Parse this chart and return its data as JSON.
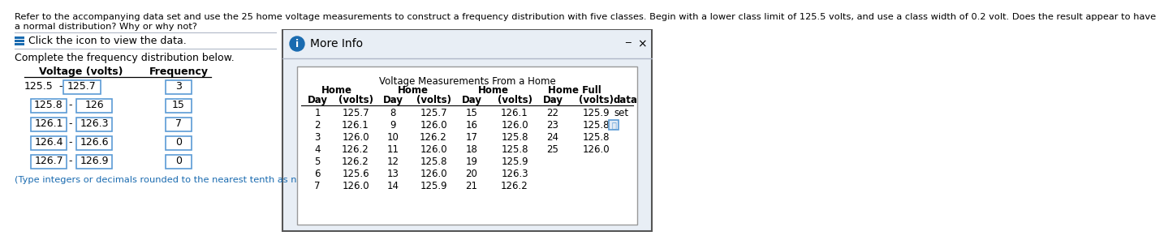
{
  "header_text_line1": "Refer to the accompanying data set and use the 25 home voltage measurements to construct a frequency distribution with five classes. Begin with a lower class limit of 125.5 volts, and use a class width of 0.2 volt. Does the result appear to have",
  "header_text_line2": "a normal distribution? Why or why not?",
  "click_text": "Click the icon to view the data.",
  "complete_text": "Complete the frequency distribution below.",
  "table_header_volt": "Voltage (volts)",
  "table_header_freq": "Frequency",
  "freq_rows": [
    [
      "125.5",
      "125.7",
      "3"
    ],
    [
      "125.8",
      "126",
      "15"
    ],
    [
      "126.1",
      "126.3",
      "7"
    ],
    [
      "126.4",
      "126.6",
      "0"
    ],
    [
      "126.7",
      "126.9",
      "0"
    ]
  ],
  "note_text": "(Type integers or decimals rounded to the nearest tenth as needed.",
  "popup_title": "More Info",
  "data_title": "Voltage Measurements From a Home",
  "data_rows": [
    [
      1,
      "125.7",
      8,
      "125.7",
      15,
      "126.1",
      22,
      "125.9"
    ],
    [
      2,
      "126.1",
      9,
      "126.0",
      16,
      "126.0",
      23,
      "125.8"
    ],
    [
      3,
      "126.0",
      10,
      "126.2",
      17,
      "125.8",
      24,
      "125.8"
    ],
    [
      4,
      "126.2",
      11,
      "126.0",
      18,
      "125.8",
      25,
      "126.0"
    ],
    [
      5,
      "126.2",
      12,
      "125.8",
      19,
      "125.9",
      null,
      null
    ],
    [
      6,
      "125.6",
      13,
      "126.0",
      20,
      "126.3",
      null,
      null
    ],
    [
      7,
      "126.0",
      14,
      "125.9",
      21,
      "126.2",
      null,
      null
    ]
  ],
  "bg_color": "#ffffff",
  "popup_bg": "#e8eef5",
  "popup_inner_bg": "#ffffff",
  "box_color": "#5b9bd5",
  "header_line_color": "#b0b8c8",
  "blue_icon_color": "#1a6bb0",
  "blue_text_color": "#1a6bb0",
  "popup_border_color": "#555555",
  "inner_border_color": "#999999"
}
